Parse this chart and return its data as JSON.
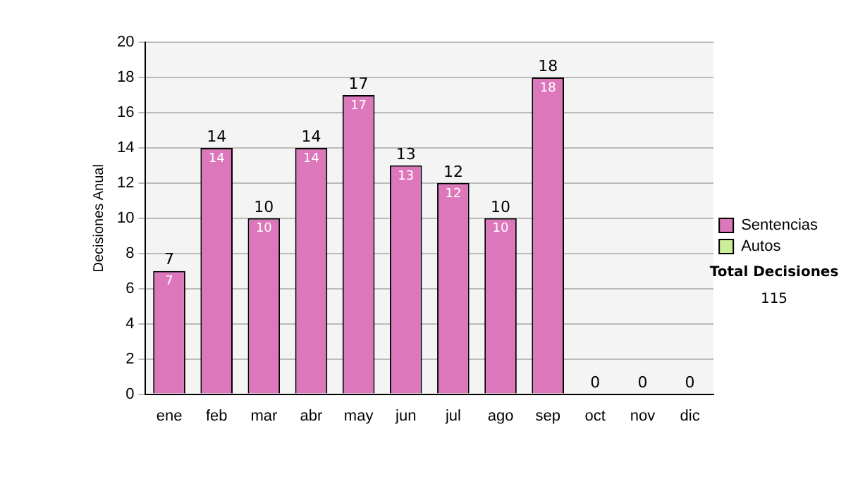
{
  "chart_data": {
    "type": "bar",
    "stacked": true,
    "ylabel": "Decisiones Anual",
    "categories": [
      "ene",
      "feb",
      "mar",
      "abr",
      "may",
      "jun",
      "jul",
      "ago",
      "sep",
      "oct",
      "nov",
      "dic"
    ],
    "series": [
      {
        "name": "Sentencias",
        "color": "#dd77bb",
        "values": [
          7,
          14,
          10,
          14,
          17,
          13,
          12,
          10,
          18,
          0,
          0,
          0
        ],
        "value_labels": [
          "7",
          "14",
          "10",
          "14",
          "17",
          "13",
          "12",
          "10",
          "18",
          null,
          null,
          null
        ]
      },
      {
        "name": "Autos",
        "color": "#ccee99",
        "values": [
          0,
          0,
          0,
          0,
          0,
          0,
          0,
          0,
          0,
          0,
          0,
          0
        ]
      }
    ],
    "totals": [
      "7",
      "14",
      "10",
      "14",
      "17",
      "13",
      "12",
      "10",
      "18",
      "0",
      "0",
      "0"
    ],
    "ylim": [
      0,
      20
    ],
    "yticks": [
      0,
      2,
      4,
      6,
      8,
      10,
      12,
      14,
      16,
      18,
      20
    ],
    "grid": "y",
    "legend": "right",
    "annotations": [
      "Total Decisiones",
      "115"
    ]
  }
}
